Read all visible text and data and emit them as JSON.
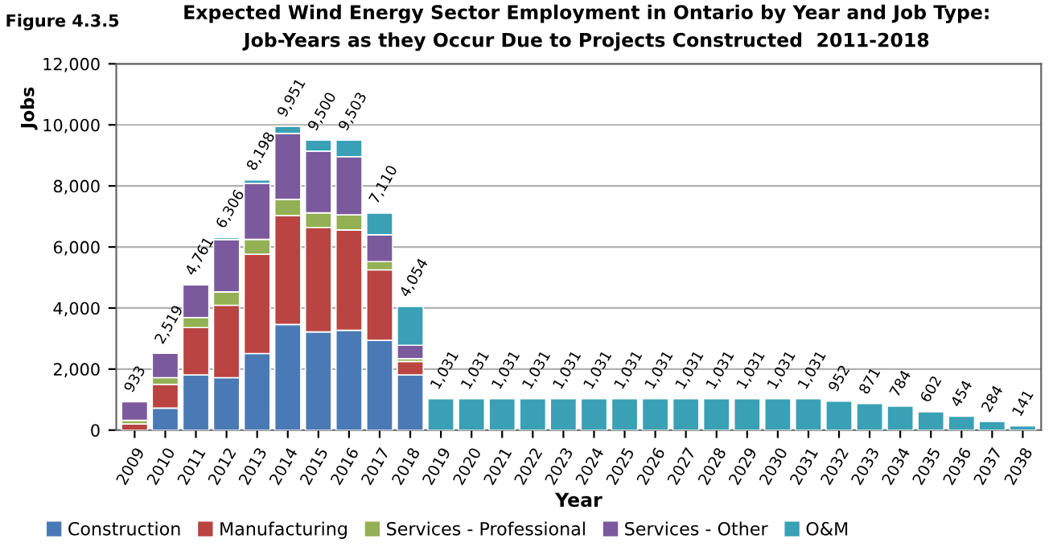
{
  "chart_data": {
    "type": "bar",
    "stacked": true,
    "title": "Expected Wind Energy Sector Employment in Ontario by Year and Job Type:",
    "subtitle": "Job-Years as they Occur Due to Projects Constructed  2011-2018",
    "annotations": [
      "Figure 4.3.5"
    ],
    "xlabel": "Year",
    "ylabel": "Jobs",
    "categories": [
      "2009",
      "2010",
      "2011",
      "2012",
      "2013",
      "2014",
      "2015",
      "2016",
      "2017",
      "2018",
      "2019",
      "2020",
      "2021",
      "2022",
      "2023",
      "2024",
      "2025",
      "2026",
      "2027",
      "2028",
      "2029",
      "2030",
      "2031",
      "2032",
      "2033",
      "2034",
      "2035",
      "2036",
      "2037",
      "2038"
    ],
    "series": [
      {
        "name": "Construction",
        "color": "#4a7ab5",
        "values": [
          null,
          720,
          1810,
          1720,
          2510,
          3460,
          3220,
          3270,
          2940,
          1810,
          null,
          null,
          null,
          null,
          null,
          null,
          null,
          null,
          null,
          null,
          null,
          null,
          null,
          null,
          null,
          null,
          null,
          null,
          null,
          null
        ]
      },
      {
        "name": "Manufacturing",
        "color": "#b94441",
        "values": [
          200,
          780,
          1550,
          2370,
          3250,
          3570,
          3420,
          3290,
          2310,
          440,
          null,
          null,
          null,
          null,
          null,
          null,
          null,
          null,
          null,
          null,
          null,
          null,
          null,
          null,
          null,
          null,
          null,
          null,
          null,
          null
        ]
      },
      {
        "name": "Services - Professional",
        "color": "#93b054",
        "values": [
          120,
          220,
          330,
          440,
          490,
          530,
          480,
          490,
          270,
          90,
          null,
          null,
          null,
          null,
          null,
          null,
          null,
          null,
          null,
          null,
          null,
          null,
          null,
          null,
          null,
          null,
          null,
          null,
          null,
          null
        ]
      },
      {
        "name": "Services - Other",
        "color": "#7a5a9c",
        "values": [
          610,
          800,
          1070,
          1710,
          1830,
          2160,
          2020,
          1910,
          880,
          440,
          null,
          null,
          null,
          null,
          null,
          null,
          null,
          null,
          null,
          null,
          null,
          null,
          null,
          null,
          null,
          null,
          null,
          null,
          null,
          null
        ]
      },
      {
        "name": "O&M",
        "color": "#3aa0b5",
        "values": [
          null,
          null,
          null,
          66,
          120,
          230,
          360,
          540,
          710,
          1274,
          1031,
          1031,
          1031,
          1031,
          1031,
          1031,
          1031,
          1031,
          1031,
          1031,
          1031,
          1031,
          1031,
          952,
          871,
          784,
          602,
          454,
          284,
          141
        ]
      }
    ],
    "totals": [
      "933",
      "2,519",
      "4,761",
      "6,306",
      "8,198",
      "9,951",
      "9,500",
      "9,503",
      "7,110",
      "4,054",
      "1,031",
      "1,031",
      "1,031",
      "1,031",
      "1,031",
      "1,031",
      "1,031",
      "1,031",
      "1,031",
      "1,031",
      "1,031",
      "1,031",
      "1,031",
      "952",
      "871",
      "784",
      "602",
      "454",
      "284",
      "141"
    ],
    "ylim": [
      0,
      12000
    ],
    "yticks": [
      0,
      {
        "value": 2000,
        "label": "2,000"
      },
      {
        "value": 4000,
        "label": "4,000"
      },
      {
        "value": 6000,
        "label": "6,000"
      },
      {
        "value": 8000,
        "label": "8,000"
      },
      {
        "value": 10000,
        "label": "10,000"
      },
      {
        "value": 12000,
        "label": "12,000"
      }
    ],
    "grid": "y",
    "legend": "bottom"
  }
}
